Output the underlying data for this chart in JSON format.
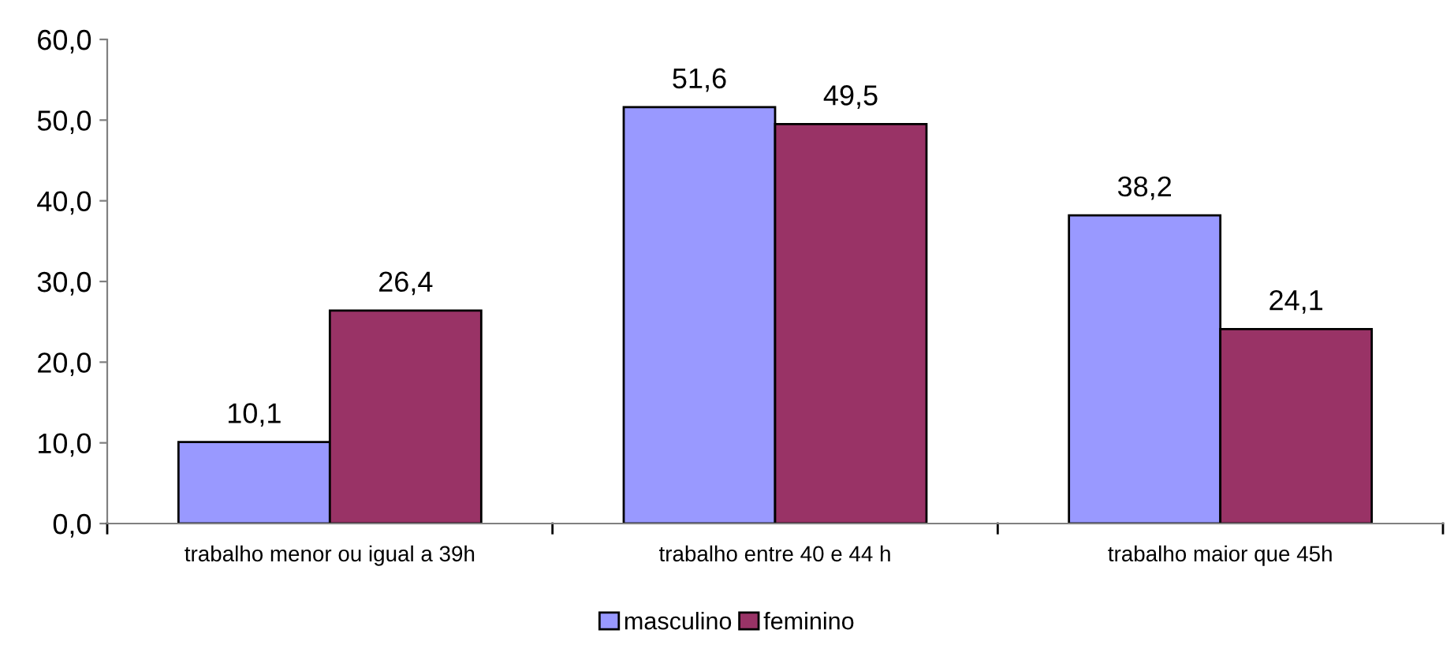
{
  "chart_data": {
    "type": "bar",
    "categories": [
      "trabalho menor ou igual a 39h",
      "trabalho entre 40 e 44 h",
      "trabalho maior que 45h"
    ],
    "series": [
      {
        "name": "masculino",
        "color": "#9999ff",
        "values": [
          10.1,
          51.6,
          38.2
        ],
        "value_labels": [
          "10,1",
          "51,6",
          "38,2"
        ]
      },
      {
        "name": "feminino",
        "color": "#993366",
        "values": [
          26.4,
          49.5,
          24.1
        ],
        "value_labels": [
          "26,4",
          "49,5",
          "24,1"
        ]
      }
    ],
    "ylim": [
      0,
      60
    ],
    "yticks": [
      {
        "value": 0,
        "label": "0,0"
      },
      {
        "value": 10,
        "label": "10,0"
      },
      {
        "value": 20,
        "label": "20,0"
      },
      {
        "value": 30,
        "label": "30,0"
      },
      {
        "value": 40,
        "label": "40,0"
      },
      {
        "value": 50,
        "label": "50,0"
      },
      {
        "value": 60,
        "label": "60,0"
      }
    ],
    "grid": false,
    "legend": "bottom"
  }
}
